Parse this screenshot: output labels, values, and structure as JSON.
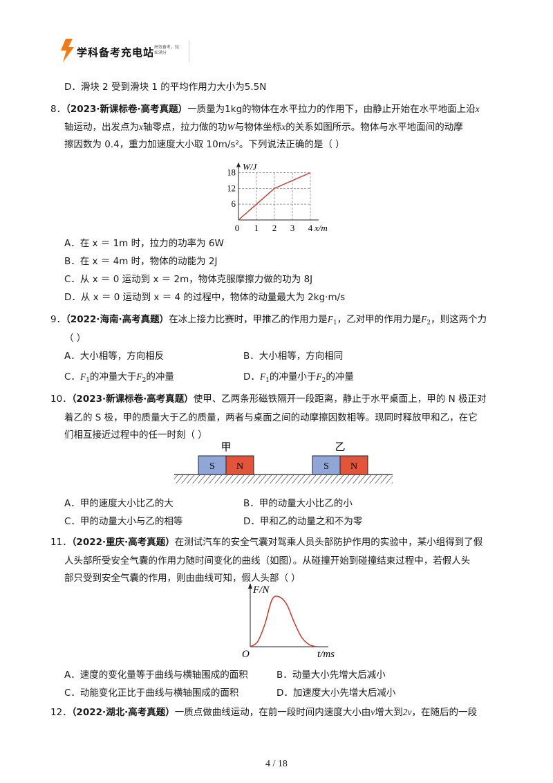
{
  "header": {
    "brand": "学科备考充电站",
    "slogan": "高效备考，轻松满分"
  },
  "prev": {
    "optD": "D．滑块 2 受到滑块 1 的平均作用力大小为5.5N"
  },
  "q8": {
    "num": "8．",
    "source": "（2023·新课标卷·高考真题）",
    "line1_rest": "一质量为1kg的物体在水平拉力的作用下，由静止开始在水平地面上沿",
    "line1_var": "x",
    "line2_a": "轴运动，出发点为",
    "line2_x": "x",
    "line2_b": "轴零点，拉力做的功",
    "line2_W": "W",
    "line2_c": "与物体坐标",
    "line2_x2": "x",
    "line2_d": "的关系如图所示。物体与水平地面间的动摩",
    "line3": "擦因数为 0.4，重力加速度大小取 10m/s²。下列说法正确的是（    ）",
    "optA": "A．在 x ＝ 1m 时，拉力的功率为 6W",
    "optB": "B．在 x ＝ 4m 时，物体的动能为 2J",
    "optC": "C．从 x ＝ 0 运动到 x ＝ 2m，物体克服摩擦力做的功为 8J",
    "optD": "D．从 x ＝ 0 运动到 x ＝ 4 的过程中，物体的动量最大为 2kg·m/s"
  },
  "chart_data": [
    {
      "type": "line",
      "x": [
        0,
        1,
        2,
        3,
        4
      ],
      "series": [
        {
          "values": [
            0,
            6,
            12,
            15,
            18
          ]
        }
      ],
      "x_ticks": [
        "0",
        "1",
        "2",
        "3",
        "4"
      ],
      "y_ticks": [
        "6",
        "12",
        "18"
      ],
      "xlabel": "x/m",
      "ylabel": "W/J",
      "xlim": [
        0,
        4
      ],
      "ylim": [
        0,
        18
      ],
      "grid": true,
      "line_color": "#c0392b"
    },
    {
      "type": "line",
      "series": [
        {
          "values": [
            0,
            0.1,
            0.45,
            0.95,
            1.0,
            0.85,
            0.5,
            0.2,
            0.05,
            0
          ]
        }
      ],
      "xlabel": "t/ms",
      "ylabel": "F/N",
      "origin_label": "O",
      "line_color": "#c0392b"
    }
  ],
  "q9": {
    "num": "9．",
    "source": "（2022·海南·高考真题）",
    "stem_a": "在冰上接力比赛时，甲推乙的作用力是",
    "F": "F",
    "sub1": "1",
    "sub2": "2",
    "stem_b": "，乙对甲的作用力是",
    "stem_c": "，则这两个力",
    "paren": "（     ）",
    "optA": "A．大小相等，方向相反",
    "optB": "B．大小相等，方向相同",
    "optC_pre": "C．",
    "optC_mid": "的冲量大于",
    "optC_post": "的冲量",
    "optD_pre": "D．",
    "optD_mid": "的冲量小于",
    "optD_post": "的冲量"
  },
  "q10": {
    "num": "10．",
    "source": "（2023·新课标卷·高考真题）",
    "line1": "使甲、乙两条形磁铁隔开一段距离，静止于水平桌面上，甲的 N 极正对",
    "line2": "着乙的 S 极，甲的质量大于乙的质量，两者与桌面之间的动摩擦因数相等。现同时释放甲和乙，在它",
    "line3": "们相互接近过程中的任一时刻（     ）",
    "magnet1": {
      "label": "甲",
      "s": "S",
      "n": "N"
    },
    "magnet2": {
      "label": "乙",
      "s": "S",
      "n": "N"
    },
    "colors": {
      "s_pole": "#8fa6d6",
      "n_pole": "#e2553a"
    },
    "optA": "A．甲的速度大小比乙的大",
    "optB": "B．甲的动量大小比乙的小",
    "optC": "C．甲的动量大小与乙的相等",
    "optD": "D．甲和乙的动量之和不为零"
  },
  "q11": {
    "num": "11．",
    "source": "（2022·重庆·高考真题）",
    "line1": "在测试汽车的安全气囊对驾乘人员头部防护作用的实验中，某小组得到了假",
    "line2": "人头部所受安全气囊的作用力随时间变化的曲线（如图）。从碰撞开始到碰撞结束过程中，若假人头",
    "line3": "部只受到安全气囊的作用，则由曲线可知，假人头部（    ）",
    "optA": "A．速度的变化量等于曲线与横轴围成的面积",
    "optB": "B．动量大小先增大后减小",
    "optC": "C．动能变化正比于曲线与横轴围成的面积",
    "optD": "D．加速度大小先增大后减小"
  },
  "q12": {
    "num": "12．",
    "source": "（2022·湖北·高考真题）",
    "line1_a": "一质点做曲线运动，在前一段时间内速度大小由",
    "v": "v",
    "line1_b": "增大到",
    "two_v": "2v",
    "line1_c": "，在随后的一段"
  },
  "footer": {
    "page": "4  /  18"
  }
}
